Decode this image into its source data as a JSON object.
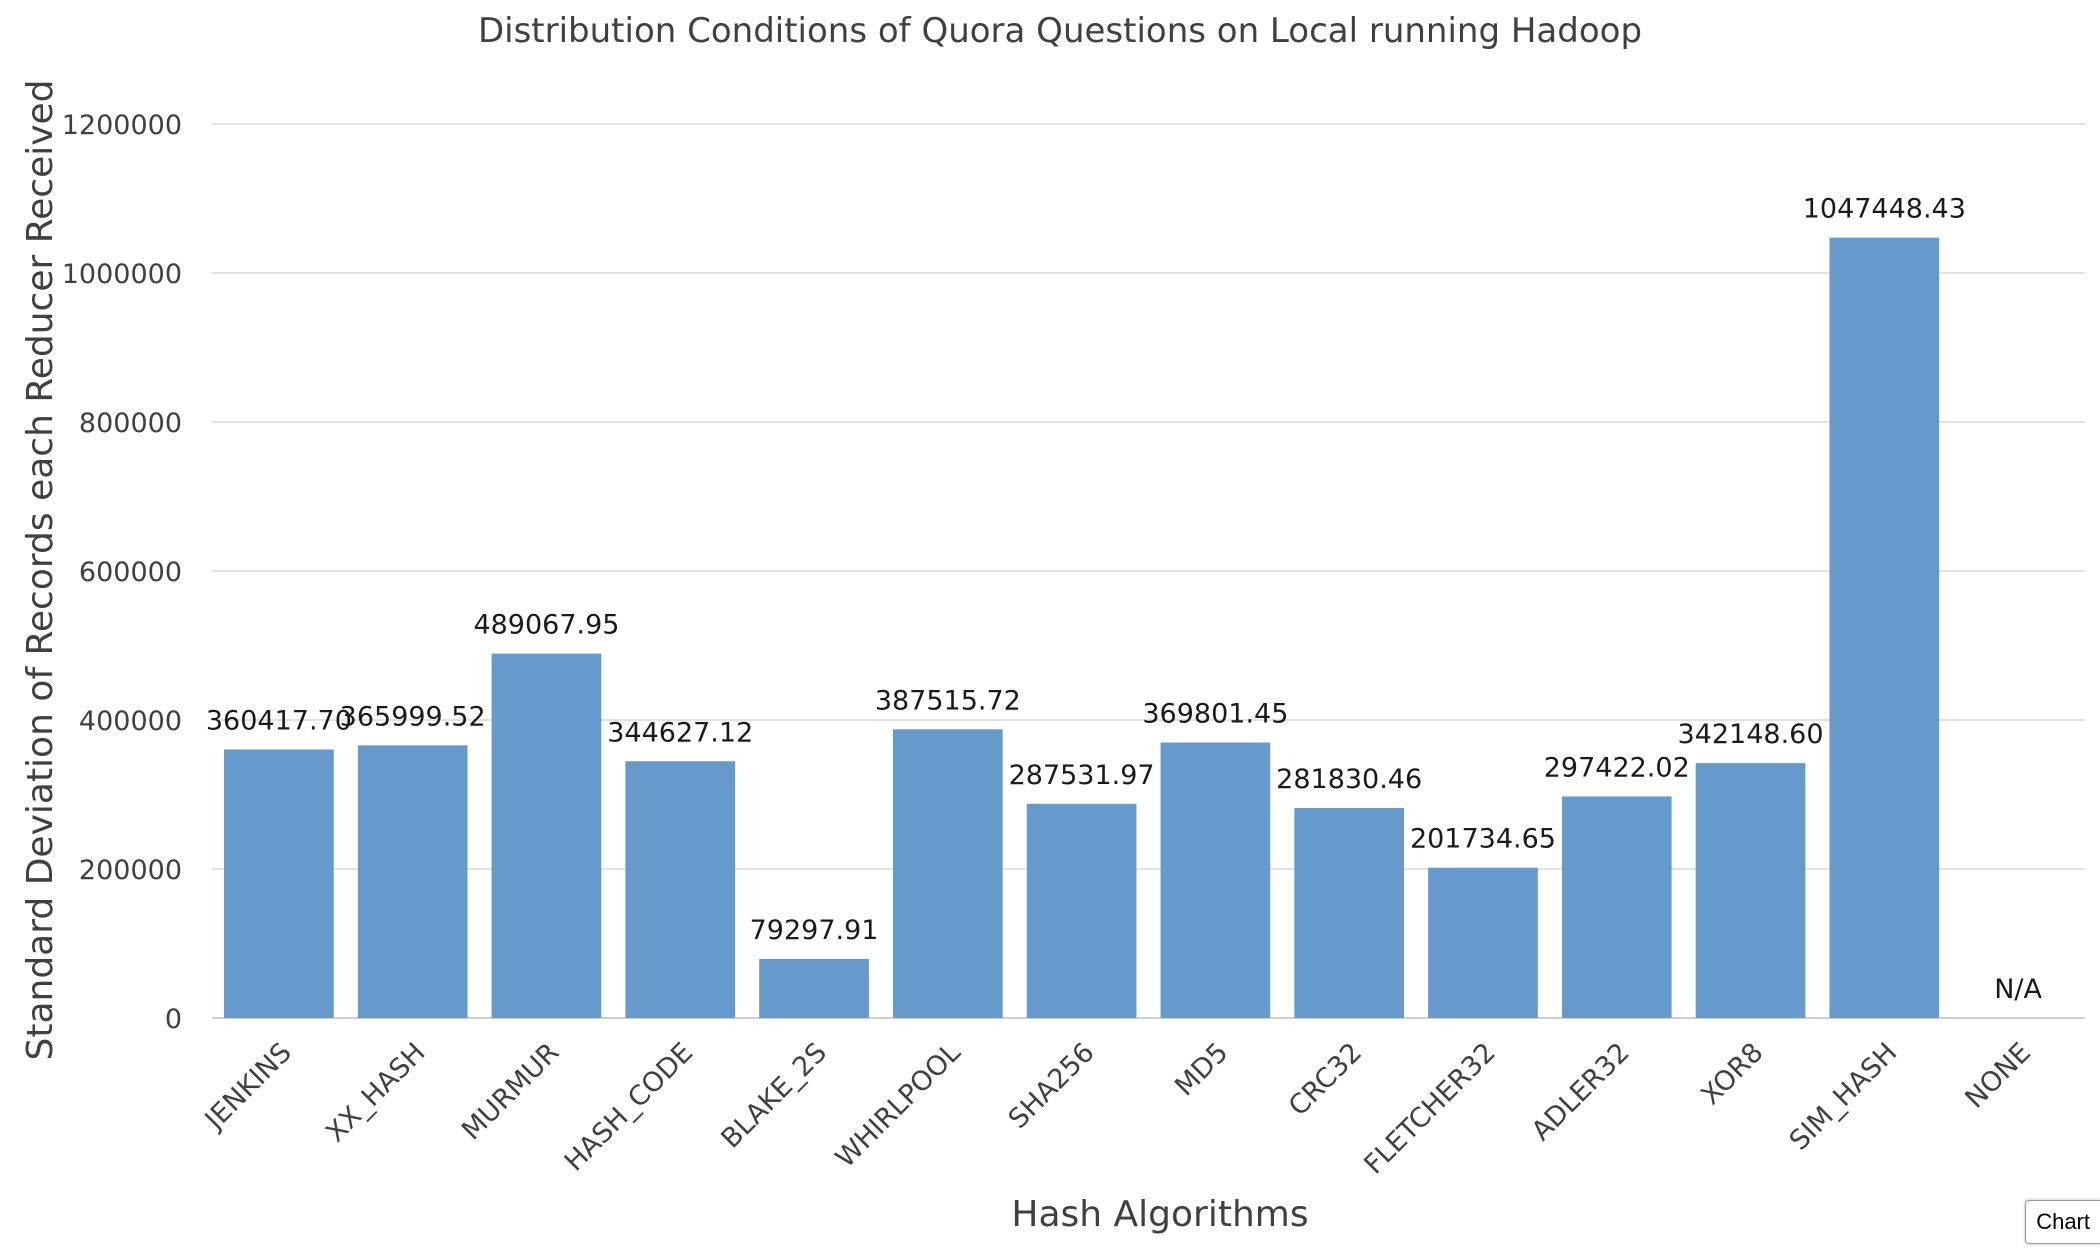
{
  "chart_data": {
    "type": "bar",
    "title": "Distribution Conditions of Quora Questions on Local running Hadoop",
    "xlabel": "Hash Algorithms",
    "ylabel": "Standard Deviation of  Records each Reducer Received",
    "ylim": [
      0,
      1200000
    ],
    "yticks": [
      0,
      200000,
      400000,
      600000,
      800000,
      1000000,
      1200000
    ],
    "grid": true,
    "bar_color": "#6699cc",
    "categories": [
      "JENKINS",
      "XX_HASH",
      "MURMUR",
      "HASH_CODE",
      "BLAKE_2S",
      "WHIRLPOOL",
      "SHA256",
      "MD5",
      "CRC32",
      "FLETCHER32",
      "ADLER32",
      "XOR8",
      "SIM_HASH",
      "NONE"
    ],
    "values": [
      360417.7,
      365999.52,
      489067.95,
      344627.12,
      79297.91,
      387515.72,
      287531.97,
      369801.45,
      281830.46,
      201734.65,
      297422.02,
      342148.6,
      1047448.43,
      null
    ],
    "data_labels": [
      "360417.70",
      "365999.52",
      "489067.95",
      "344627.12",
      "79297.91",
      "387515.72",
      "287531.97",
      "369801.45",
      "281830.46",
      "201734.65",
      "297422.02",
      "342148.60",
      "1047448.43",
      "N/A"
    ]
  },
  "ui": {
    "chart_tab_label": "Chart"
  }
}
